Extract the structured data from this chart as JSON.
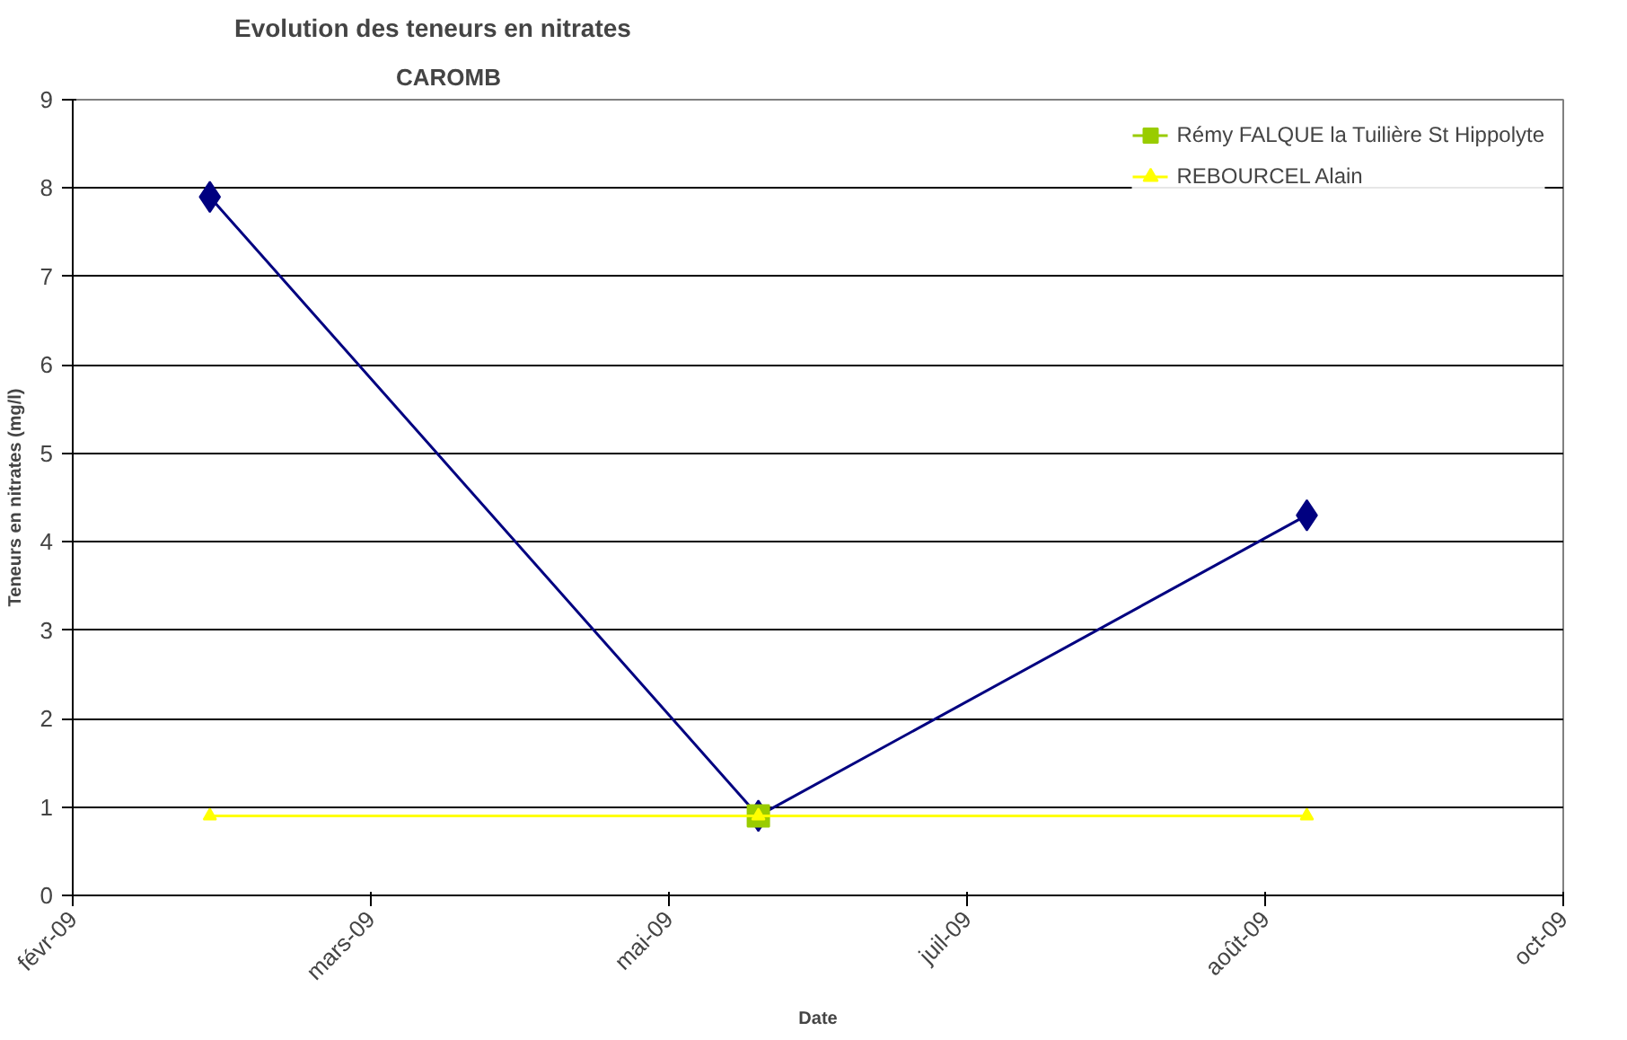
{
  "chart_data": {
    "type": "line",
    "title": "Evolution des teneurs en nitrates",
    "subtitle": "CAROMB",
    "xlabel": "Date",
    "ylabel": "Teneurs en nitrates (mg/l)",
    "x": [
      "2009-02-24",
      "2009-05-27",
      "2009-08-27"
    ],
    "series": [
      {
        "color": "#000080",
        "values": [
          7.9,
          0.9,
          4.3
        ],
        "marker": "diamond"
      },
      {
        "name": "Rémy FALQUE la Tuilière St Hippolyte",
        "color": "#99cc00",
        "values": [
          null,
          0.9,
          null
        ],
        "marker": "square"
      },
      {
        "name": "REBOURCEL Alain",
        "color": "#ffff00",
        "values": [
          0.9,
          0.9,
          0.9
        ],
        "marker": "triangle"
      }
    ],
    "xlim": [
      "2009-02-01",
      "2009-10-09"
    ],
    "xticks": [
      {
        "value": "2009-02-01",
        "label": "févr-09"
      },
      {
        "value": "2009-03-23",
        "label": "mars-09"
      },
      {
        "value": "2009-05-12",
        "label": "mai-09"
      },
      {
        "value": "2009-07-01",
        "label": "juil-09"
      },
      {
        "value": "2009-08-20",
        "label": "août-09"
      },
      {
        "value": "2009-10-09",
        "label": "oct-09"
      }
    ],
    "ylim": [
      0,
      9
    ],
    "yticks": [
      0,
      1,
      2,
      3,
      4,
      5,
      6,
      7,
      8,
      9
    ],
    "grid": "y",
    "legend": "top right"
  }
}
